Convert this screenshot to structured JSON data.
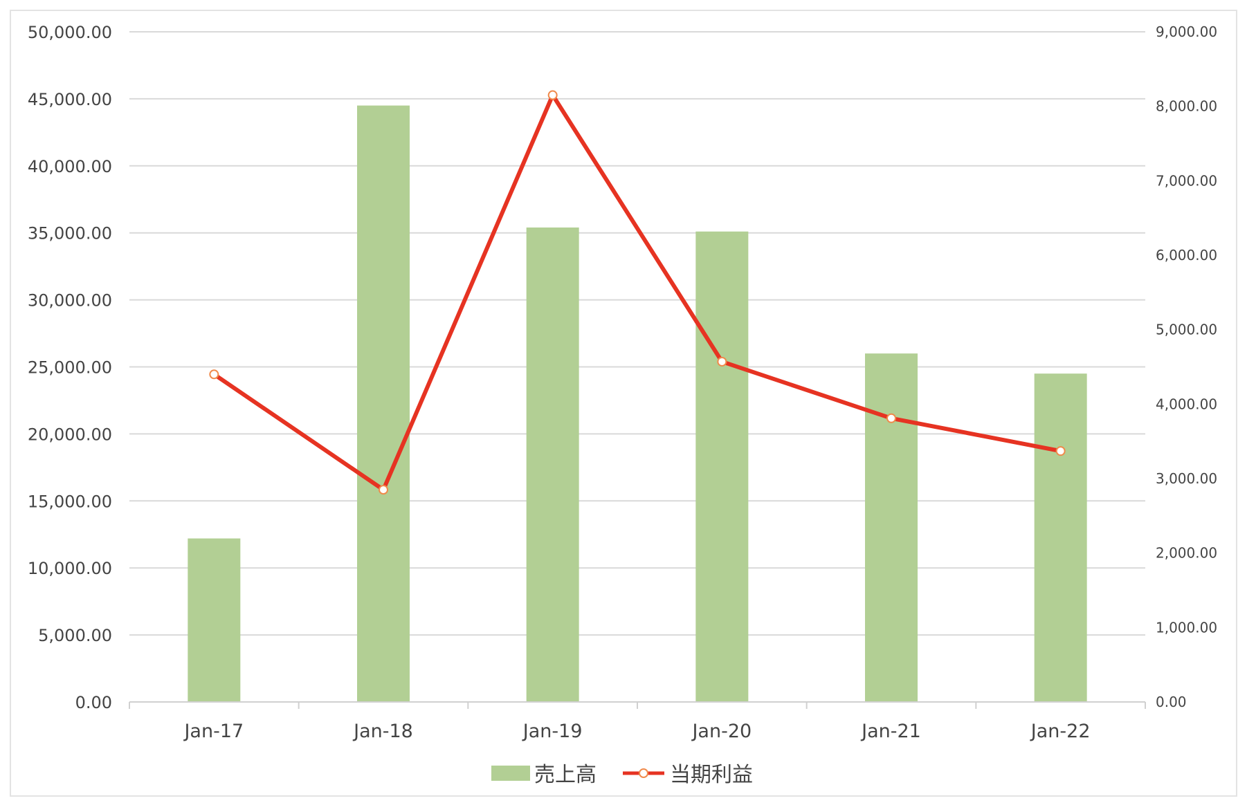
{
  "chart_data": {
    "type": "bar",
    "categories": [
      "Jan-17",
      "Jan-18",
      "Jan-19",
      "Jan-20",
      "Jan-21",
      "Jan-22"
    ],
    "series": [
      {
        "name": "売上高",
        "type": "bar",
        "axis": "left",
        "color": "#b2cf94",
        "values": [
          12200,
          44500,
          35400,
          35100,
          26000,
          24500
        ]
      },
      {
        "name": "当期利益",
        "type": "line",
        "axis": "right",
        "color": "#e63322",
        "marker_color": "#f08a4b",
        "values": [
          4400,
          2850,
          8150,
          4570,
          3810,
          3370
        ]
      }
    ],
    "y_left": {
      "min": 0,
      "max": 50000,
      "step": 5000,
      "tick_labels": [
        "0.00",
        "5,000.00",
        "10,000.00",
        "15,000.00",
        "20,000.00",
        "25,000.00",
        "30,000.00",
        "35,000.00",
        "40,000.00",
        "45,000.00",
        "50,000.00"
      ]
    },
    "y_right": {
      "min": 0,
      "max": 9000,
      "step": 1000,
      "tick_labels": [
        "0.00",
        "1,000.00",
        "2,000.00",
        "3,000.00",
        "4,000.00",
        "5,000.00",
        "6,000.00",
        "7,000.00",
        "8,000.00",
        "9,000.00"
      ]
    },
    "grid": true,
    "legend_position": "bottom"
  }
}
